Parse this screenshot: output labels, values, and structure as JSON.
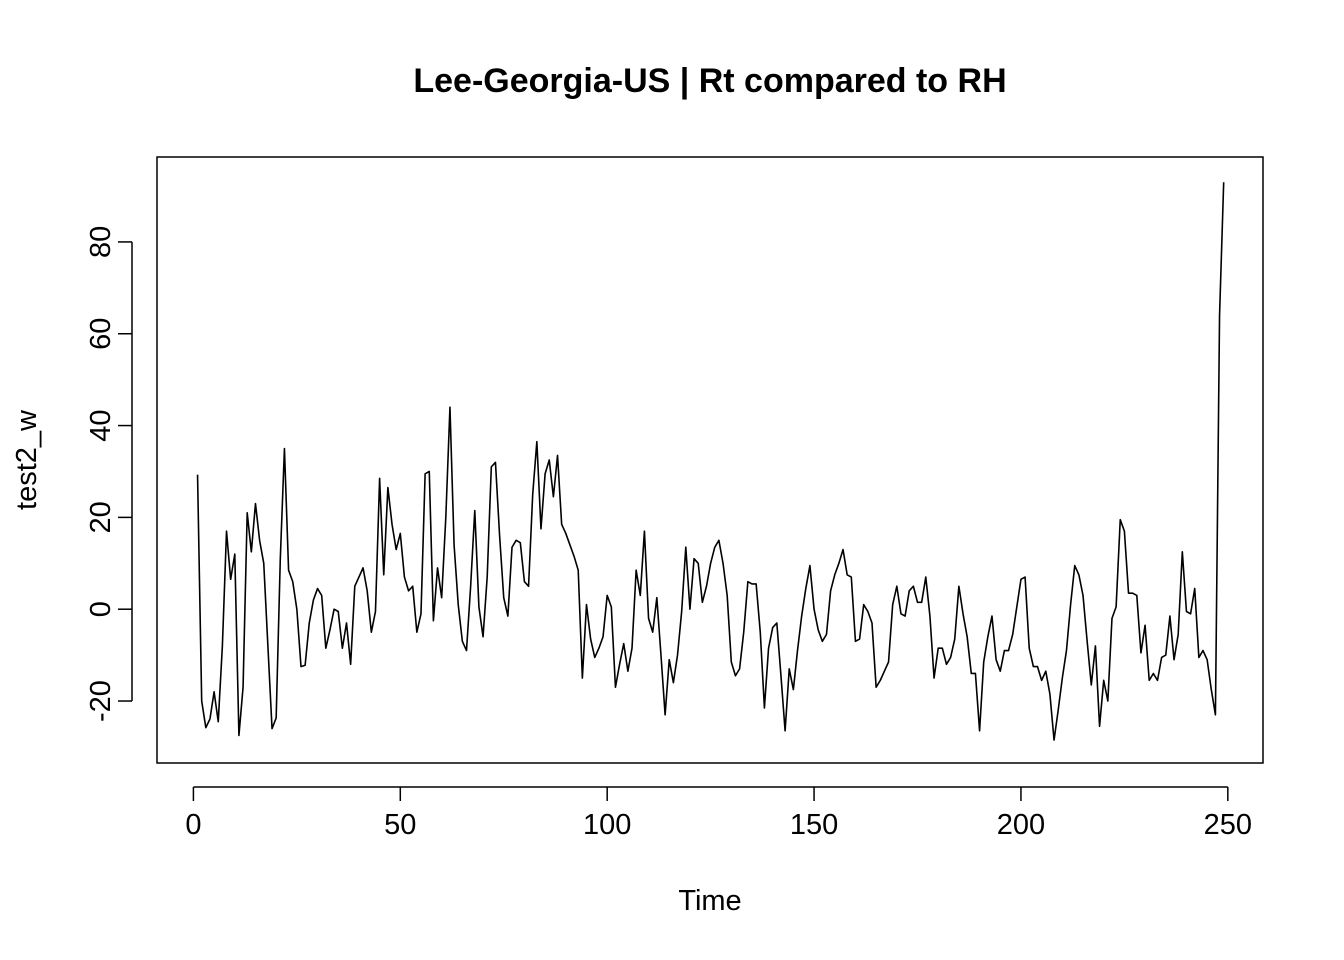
{
  "chart_data": {
    "type": "line",
    "title": "Lee-Georgia-US | Rt compared to RH",
    "xlabel": "Time",
    "ylabel": "test2_w",
    "xlim": [
      -8.8,
      258.5
    ],
    "ylim": [
      -33.5,
      98.5
    ],
    "x_ticks": [
      0,
      50,
      100,
      150,
      200,
      250
    ],
    "y_ticks": [
      -20,
      0,
      20,
      40,
      60,
      80
    ],
    "grid": false,
    "legend": "none",
    "color": "#000000",
    "x_start": 1,
    "values": [
      29.3,
      -20.0,
      -25.8,
      -23.9,
      -18.0,
      -24.5,
      -8.0,
      17.0,
      6.5,
      12.0,
      -27.5,
      -17.0,
      21.0,
      12.5,
      23.0,
      15.0,
      10.0,
      -8.0,
      -26.0,
      -23.7,
      11.0,
      35.0,
      8.5,
      6.0,
      0.0,
      -12.5,
      -12.2,
      -3.0,
      2.0,
      4.5,
      3.0,
      -8.5,
      -4.5,
      0.0,
      -0.5,
      -8.5,
      -3.0,
      -12.0,
      5.0,
      7.0,
      9.0,
      4.0,
      -5.0,
      -0.5,
      28.5,
      7.5,
      26.5,
      18.5,
      13.0,
      16.5,
      7.0,
      4.0,
      5.0,
      -5.0,
      -1.0,
      29.5,
      30.0,
      -2.5,
      9.0,
      2.5,
      20.0,
      44.0,
      14.0,
      1.0,
      -7.0,
      -9.0,
      5.0,
      21.5,
      0.5,
      -6.0,
      7.0,
      31.0,
      32.0,
      16.0,
      2.5,
      -1.5,
      13.5,
      15.0,
      14.5,
      6.0,
      5.0,
      25.0,
      36.5,
      17.5,
      29.5,
      32.5,
      24.5,
      33.5,
      18.5,
      16.5,
      14.0,
      11.5,
      8.5,
      -15.0,
      1.0,
      -6.5,
      -10.5,
      -8.5,
      -6.0,
      3.0,
      0.5,
      -17.0,
      -12.0,
      -7.5,
      -13.5,
      -8.5,
      8.5,
      3.0,
      17.0,
      -2.0,
      -5.0,
      2.5,
      -10.0,
      -23.0,
      -11.0,
      -16.0,
      -10.0,
      -0.5,
      13.5,
      0.0,
      11.0,
      10.0,
      1.5,
      5.0,
      10.0,
      13.5,
      15.0,
      10.0,
      3.0,
      -11.5,
      -14.5,
      -13.0,
      -5.0,
      6.0,
      5.5,
      5.5,
      -5.0,
      -21.5,
      -8.5,
      -4.0,
      -3.0,
      -14.5,
      -26.5,
      -13.0,
      -17.5,
      -9.0,
      -1.5,
      4.5,
      9.5,
      0.0,
      -4.5,
      -7.0,
      -5.5,
      4.0,
      7.5,
      10.0,
      13.0,
      7.5,
      7.0,
      -7.0,
      -6.5,
      1.0,
      -0.5,
      -3.0,
      -17.0,
      -15.5,
      -13.5,
      -11.5,
      1.0,
      5.0,
      -1.0,
      -1.5,
      4.0,
      5.0,
      1.5,
      1.5,
      7.0,
      -1.5,
      -15.0,
      -8.5,
      -8.5,
      -12.0,
      -10.5,
      -6.5,
      5.0,
      -1.0,
      -6.0,
      -14.0,
      -14.0,
      -26.5,
      -11.5,
      -6.0,
      -1.5,
      -11.0,
      -13.5,
      -9.0,
      -9.0,
      -5.5,
      0.5,
      6.5,
      7.0,
      -8.5,
      -12.5,
      -12.5,
      -15.5,
      -13.5,
      -18.5,
      -28.5,
      -22.0,
      -15.0,
      -9.0,
      1.0,
      9.5,
      7.5,
      3.0,
      -7.0,
      -16.5,
      -8.0,
      -25.5,
      -15.5,
      -20.0,
      -2.0,
      0.5,
      19.5,
      17.0,
      3.5,
      3.5,
      3.0,
      -9.5,
      -3.5,
      -15.5,
      -14.0,
      -15.5,
      -10.5,
      -10.0,
      -1.5,
      -11.0,
      -5.5,
      12.5,
      -0.5,
      -1.0,
      4.5,
      -10.5,
      -9.0,
      -11.0,
      -17.5,
      -23.0,
      64.0,
      93.0
    ]
  }
}
